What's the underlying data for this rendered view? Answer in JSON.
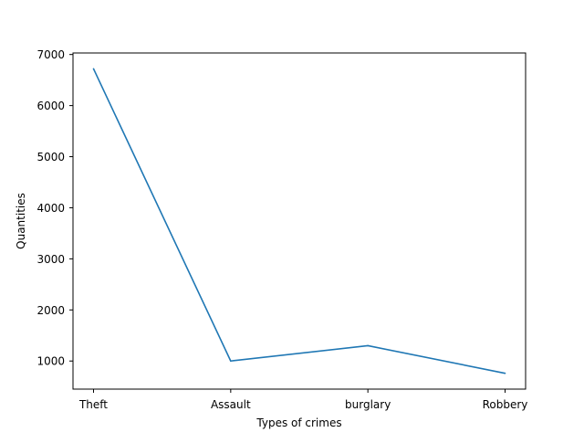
{
  "chart_data": {
    "type": "line",
    "title": "",
    "xlabel": "Types of crimes",
    "ylabel": "Quantities",
    "categories": [
      "Theft",
      "Assault",
      "burglary",
      "Robbery"
    ],
    "series": [
      {
        "values": [
          6720,
          1000,
          1300,
          760
        ],
        "color": "#1f77b4"
      }
    ],
    "ylim": [
      450,
      7030
    ],
    "yticks": [
      1000,
      2000,
      3000,
      4000,
      5000,
      6000,
      7000
    ],
    "grid": false,
    "legend": "none"
  }
}
